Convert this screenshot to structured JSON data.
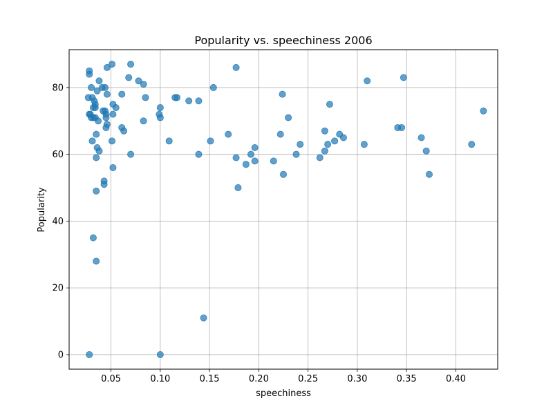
{
  "chart_data": {
    "type": "scatter",
    "title": "Popularity vs. speechiness 2006",
    "xlabel": "speechiness",
    "ylabel": "Popularity",
    "xlim": [
      0.0075,
      0.4425
    ],
    "ylim": [
      -4.35,
      91.35
    ],
    "xticks": [
      0.05,
      0.1,
      0.15,
      0.2,
      0.25,
      0.3,
      0.35,
      0.4
    ],
    "xtick_labels": [
      "0.05",
      "0.10",
      "0.15",
      "0.20",
      "0.25",
      "0.30",
      "0.35",
      "0.40"
    ],
    "yticks": [
      0,
      20,
      40,
      60,
      80
    ],
    "ytick_labels": [
      "0",
      "20",
      "40",
      "60",
      "80"
    ],
    "grid": true,
    "marker_color": "#1f77b4",
    "marker_alpha": 0.7,
    "points": [
      [
        0.028,
        85
      ],
      [
        0.028,
        84
      ],
      [
        0.03,
        80
      ],
      [
        0.027,
        77
      ],
      [
        0.031,
        77
      ],
      [
        0.033,
        76
      ],
      [
        0.034,
        75
      ],
      [
        0.032,
        74
      ],
      [
        0.034,
        74
      ],
      [
        0.028,
        72
      ],
      [
        0.029,
        72
      ],
      [
        0.03,
        71
      ],
      [
        0.032,
        71
      ],
      [
        0.034,
        71
      ],
      [
        0.031,
        64
      ],
      [
        0.035,
        66
      ],
      [
        0.035,
        59
      ],
      [
        0.036,
        62
      ],
      [
        0.038,
        61
      ],
      [
        0.037,
        70
      ],
      [
        0.036,
        79
      ],
      [
        0.038,
        82
      ],
      [
        0.041,
        80
      ],
      [
        0.044,
        80
      ],
      [
        0.042,
        73
      ],
      [
        0.044,
        73
      ],
      [
        0.045,
        72
      ],
      [
        0.045,
        71
      ],
      [
        0.046,
        78
      ],
      [
        0.046,
        86
      ],
      [
        0.045,
        68
      ],
      [
        0.046,
        69
      ],
      [
        0.051,
        87
      ],
      [
        0.052,
        75
      ],
      [
        0.052,
        72
      ],
      [
        0.051,
        64
      ],
      [
        0.052,
        56
      ],
      [
        0.055,
        74
      ],
      [
        0.043,
        52
      ],
      [
        0.043,
        51
      ],
      [
        0.035,
        49
      ],
      [
        0.032,
        35
      ],
      [
        0.035,
        28
      ],
      [
        0.028,
        0
      ],
      [
        0.061,
        78
      ],
      [
        0.061,
        68
      ],
      [
        0.063,
        67
      ],
      [
        0.068,
        83
      ],
      [
        0.07,
        87
      ],
      [
        0.07,
        60
      ],
      [
        0.078,
        82
      ],
      [
        0.083,
        81
      ],
      [
        0.085,
        77
      ],
      [
        0.083,
        70
      ],
      [
        0.1,
        74
      ],
      [
        0.099,
        72
      ],
      [
        0.1,
        71
      ],
      [
        0.1,
        0
      ],
      [
        0.109,
        64
      ],
      [
        0.115,
        77
      ],
      [
        0.117,
        77
      ],
      [
        0.129,
        76
      ],
      [
        0.139,
        76
      ],
      [
        0.139,
        60
      ],
      [
        0.144,
        11
      ],
      [
        0.151,
        64
      ],
      [
        0.154,
        80
      ],
      [
        0.169,
        66
      ],
      [
        0.177,
        86
      ],
      [
        0.177,
        59
      ],
      [
        0.179,
        50
      ],
      [
        0.187,
        57
      ],
      [
        0.192,
        60
      ],
      [
        0.196,
        62
      ],
      [
        0.196,
        58
      ],
      [
        0.215,
        58
      ],
      [
        0.222,
        66
      ],
      [
        0.224,
        78
      ],
      [
        0.225,
        54
      ],
      [
        0.23,
        71
      ],
      [
        0.238,
        60
      ],
      [
        0.242,
        63
      ],
      [
        0.262,
        59
      ],
      [
        0.267,
        67
      ],
      [
        0.267,
        61
      ],
      [
        0.27,
        63
      ],
      [
        0.272,
        75
      ],
      [
        0.277,
        64
      ],
      [
        0.282,
        66
      ],
      [
        0.286,
        65
      ],
      [
        0.307,
        63
      ],
      [
        0.31,
        82
      ],
      [
        0.341,
        68
      ],
      [
        0.345,
        68
      ],
      [
        0.347,
        83
      ],
      [
        0.365,
        65
      ],
      [
        0.37,
        61
      ],
      [
        0.373,
        54
      ],
      [
        0.416,
        63
      ],
      [
        0.428,
        73
      ]
    ]
  }
}
